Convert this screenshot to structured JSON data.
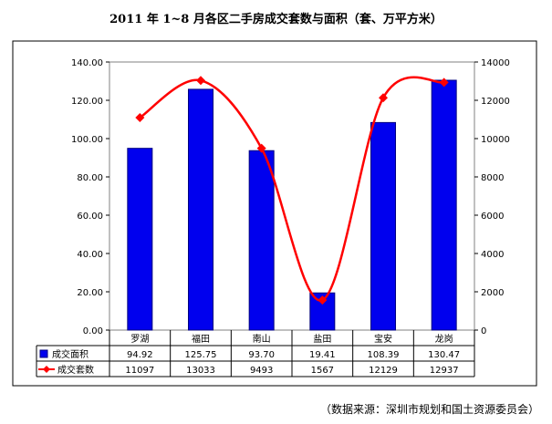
{
  "title": "2011 年 1~8 月各区二手房成交套数与面积（套、万平方米）",
  "source": "（数据来源：深圳市规划和国土资源委员会）",
  "colors": {
    "bar": "#0000ee",
    "bar_border": "#000080",
    "line": "#ff0000",
    "plot_bg": "#ffffff",
    "frame_bg": "#ffffff"
  },
  "chart_data": {
    "type": "bar",
    "categories": [
      "罗湖",
      "福田",
      "南山",
      "盐田",
      "宝安",
      "龙岗"
    ],
    "series": [
      {
        "name": "成交面积",
        "type": "bar",
        "axis": "left",
        "values": [
          94.92,
          125.75,
          93.7,
          19.41,
          108.39,
          130.47
        ],
        "labels": [
          "94.92",
          "125.75",
          "93.70",
          "19.41",
          "108.39",
          "130.47"
        ]
      },
      {
        "name": "成交套数",
        "type": "line",
        "axis": "right",
        "marker": "diamond",
        "smooth": true,
        "values": [
          11097,
          13033,
          9493,
          1567,
          12129,
          12937
        ],
        "labels": [
          "11097",
          "13033",
          "9493",
          "1567",
          "12129",
          "12937"
        ]
      }
    ],
    "y_left": {
      "min": 0,
      "max": 140,
      "step": 20,
      "tick_labels": [
        "0.00",
        "20.00",
        "40.00",
        "60.00",
        "80.00",
        "100.00",
        "120.00",
        "140.00"
      ]
    },
    "y_right": {
      "min": 0,
      "max": 14000,
      "step": 2000,
      "tick_labels": [
        "0",
        "2000",
        "4000",
        "6000",
        "8000",
        "10000",
        "12000",
        "14000"
      ]
    },
    "grid": false,
    "legend": "data-table-left"
  }
}
